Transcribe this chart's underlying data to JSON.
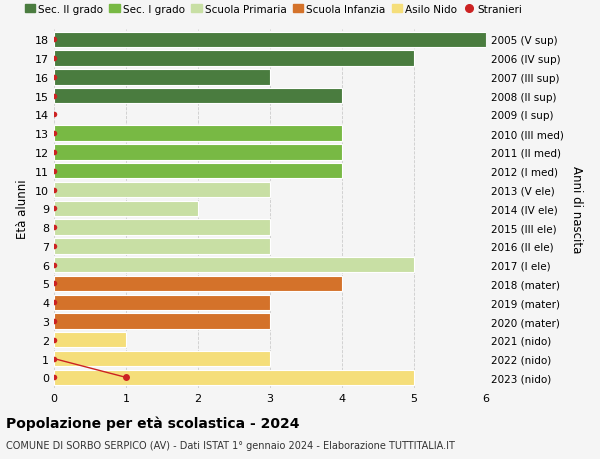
{
  "ages": [
    18,
    17,
    16,
    15,
    14,
    13,
    12,
    11,
    10,
    9,
    8,
    7,
    6,
    5,
    4,
    3,
    2,
    1,
    0
  ],
  "years": [
    "2005 (V sup)",
    "2006 (IV sup)",
    "2007 (III sup)",
    "2008 (II sup)",
    "2009 (I sup)",
    "2010 (III med)",
    "2011 (II med)",
    "2012 (I med)",
    "2013 (V ele)",
    "2014 (IV ele)",
    "2015 (III ele)",
    "2016 (II ele)",
    "2017 (I ele)",
    "2018 (mater)",
    "2019 (mater)",
    "2020 (mater)",
    "2021 (nido)",
    "2022 (nido)",
    "2023 (nido)"
  ],
  "values": [
    6,
    5,
    3,
    4,
    0,
    4,
    4,
    4,
    3,
    2,
    3,
    3,
    5,
    4,
    3,
    3,
    1,
    3,
    5
  ],
  "stranieri_x": [
    0,
    0,
    0,
    0,
    0,
    0,
    0,
    0,
    0,
    0,
    0,
    0,
    0,
    0,
    0,
    0,
    0,
    0,
    1
  ],
  "colors": {
    "sec2": "#4a7c3f",
    "sec1": "#78b944",
    "primaria": "#c8dfa4",
    "infanzia": "#d4722a",
    "nido": "#f5de7a",
    "stranieri": "#cc2222"
  },
  "school_types": {
    "sec2": [
      18,
      17,
      16,
      15,
      14
    ],
    "sec1": [
      13,
      12,
      11
    ],
    "primaria": [
      10,
      9,
      8,
      7,
      6
    ],
    "infanzia": [
      5,
      4,
      3
    ],
    "nido": [
      2,
      1,
      0
    ]
  },
  "legend_labels": [
    "Sec. II grado",
    "Sec. I grado",
    "Scuola Primaria",
    "Scuola Infanzia",
    "Asilo Nido",
    "Stranieri"
  ],
  "ylabel_left": "Età alunni",
  "ylabel_right": "Anni di nascita",
  "title": "Popolazione per età scolastica - 2024",
  "subtitle": "COMUNE DI SORBO SERPICO (AV) - Dati ISTAT 1° gennaio 2024 - Elaborazione TUTTITALIA.IT",
  "xlim": [
    0,
    6
  ],
  "bg_color": "#f5f5f5"
}
